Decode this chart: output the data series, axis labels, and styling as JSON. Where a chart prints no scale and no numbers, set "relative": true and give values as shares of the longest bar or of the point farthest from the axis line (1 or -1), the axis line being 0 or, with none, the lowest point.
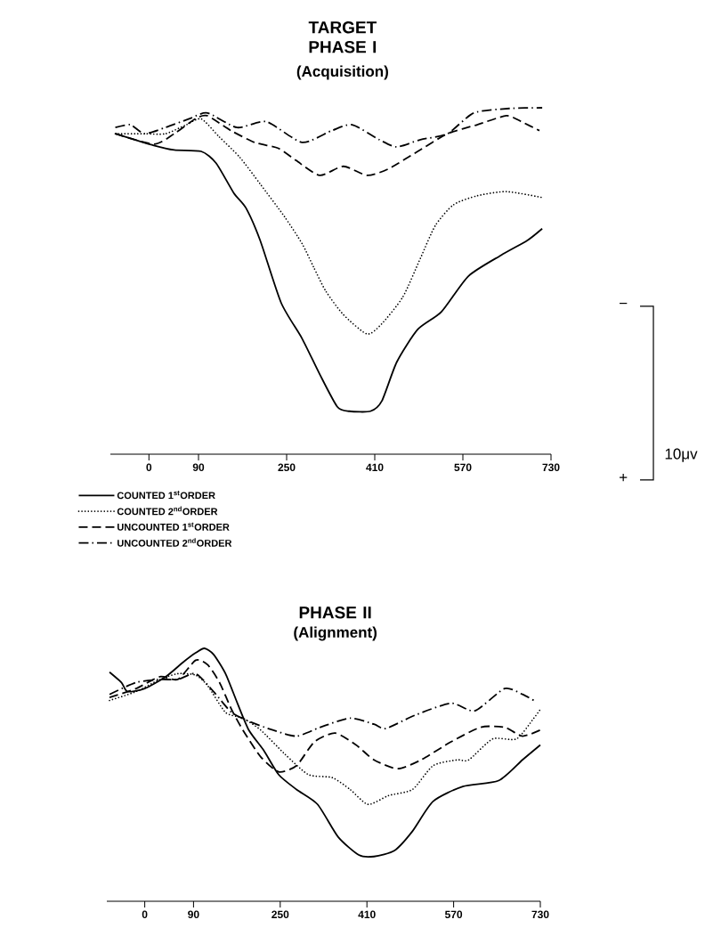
{
  "chart_data": [
    {
      "type": "line",
      "title": "TARGET PHASE I",
      "subtitle": "(Acquisition)",
      "relative": true,
      "xlim": [
        -70,
        730
      ],
      "xticks": [
        0,
        90,
        250,
        410,
        570,
        730
      ],
      "legend": "bottom left",
      "annotations": [
        "−",
        "+",
        "10μv"
      ],
      "series": [
        {
          "name": "COUNTED 1$^{st}$ORDER",
          "color": "#000000",
          "line_style": "solid",
          "x": [
            -61,
            9,
            46,
            95,
            122,
            154,
            176,
            202,
            240,
            278,
            310,
            342,
            364,
            402,
            423,
            450,
            488,
            531,
            580,
            639,
            687,
            714
          ],
          "values": [
            0.925,
            0.891,
            0.878,
            0.874,
            0.84,
            0.754,
            0.711,
            0.617,
            0.437,
            0.334,
            0.231,
            0.137,
            0.124,
            0.124,
            0.154,
            0.266,
            0.36,
            0.411,
            0.514,
            0.574,
            0.617,
            0.651
          ]
        },
        {
          "name": "COUNTED 2$^{nd}$ORDER",
          "color": "#000000",
          "line_style": "dotted",
          "x": [
            -61,
            -8,
            30,
            68,
            95,
            127,
            165,
            202,
            246,
            278,
            299,
            321,
            353,
            396,
            423,
            461,
            493,
            520,
            553,
            596,
            649,
            714
          ],
          "values": [
            0.925,
            0.925,
            0.925,
            0.951,
            0.968,
            0.917,
            0.857,
            0.78,
            0.686,
            0.608,
            0.54,
            0.471,
            0.403,
            0.347,
            0.377,
            0.454,
            0.566,
            0.66,
            0.72,
            0.746,
            0.758,
            0.741
          ]
        },
        {
          "name": "UNCOUNTED  1$^{st}$ORDER",
          "color": "#000000",
          "line_style": "dashed",
          "x": [
            -61,
            9,
            46,
            84,
            106,
            149,
            192,
            235,
            267,
            310,
            353,
            396,
            434,
            488,
            542,
            596,
            649,
            676,
            709
          ],
          "values": [
            0.925,
            0.895,
            0.925,
            0.968,
            0.977,
            0.934,
            0.9,
            0.883,
            0.848,
            0.805,
            0.831,
            0.805,
            0.823,
            0.874,
            0.925,
            0.951,
            0.977,
            0.96,
            0.934
          ]
        },
        {
          "name": "UNCOUNTED  2$^{nd}$ORDER",
          "color": "#000000",
          "line_style": "dashdot",
          "x": [
            -61,
            -34,
            -8,
            30,
            73,
            106,
            160,
            213,
            278,
            332,
            369,
            418,
            450,
            493,
            542,
            590,
            655,
            714
          ],
          "values": [
            0.943,
            0.951,
            0.925,
            0.943,
            0.968,
            0.985,
            0.943,
            0.96,
            0.9,
            0.934,
            0.951,
            0.908,
            0.887,
            0.908,
            0.925,
            0.985,
            0.998,
            1.0
          ]
        }
      ]
    },
    {
      "type": "line",
      "title": "PHASE II",
      "subtitle": "(Alignment)",
      "relative": true,
      "xlim": [
        -70,
        730
      ],
      "xticks": [
        0,
        90,
        250,
        410,
        570,
        730
      ],
      "series": [
        {
          "color": "#000000",
          "line_style": "solid",
          "x": [
            -65,
            -43,
            -32,
            0,
            39,
            72,
            94,
            110,
            127,
            149,
            171,
            192,
            220,
            247,
            280,
            319,
            357,
            395,
            423,
            461,
            494,
            532,
            587,
            653,
            697,
            730
          ],
          "values": [
            0.906,
            0.865,
            0.829,
            0.841,
            0.888,
            0.947,
            0.982,
            1.0,
            0.976,
            0.9,
            0.783,
            0.677,
            0.595,
            0.501,
            0.442,
            0.383,
            0.254,
            0.183,
            0.177,
            0.201,
            0.277,
            0.395,
            0.454,
            0.477,
            0.559,
            0.618
          ]
        },
        {
          "color": "#000000",
          "line_style": "dotted",
          "x": [
            -65,
            -16,
            28,
            61,
            94,
            116,
            149,
            181,
            214,
            258,
            302,
            346,
            379,
            412,
            450,
            494,
            532,
            576,
            598,
            642,
            686,
            718,
            730
          ],
          "values": [
            0.794,
            0.829,
            0.877,
            0.9,
            0.894,
            0.853,
            0.747,
            0.724,
            0.677,
            0.583,
            0.501,
            0.489,
            0.442,
            0.383,
            0.418,
            0.442,
            0.536,
            0.559,
            0.559,
            0.642,
            0.642,
            0.724,
            0.759
          ]
        },
        {
          "color": "#000000",
          "line_style": "dashed",
          "x": [
            -65,
            -16,
            28,
            61,
            94,
            116,
            138,
            160,
            181,
            214,
            247,
            280,
            313,
            351,
            390,
            423,
            467,
            510,
            565,
            620,
            664,
            697,
            730
          ],
          "values": [
            0.806,
            0.841,
            0.888,
            0.877,
            0.953,
            0.935,
            0.865,
            0.759,
            0.677,
            0.571,
            0.512,
            0.536,
            0.63,
            0.665,
            0.618,
            0.559,
            0.524,
            0.559,
            0.63,
            0.688,
            0.688,
            0.653,
            0.677
          ]
        },
        {
          "color": "#000000",
          "line_style": "dashdot",
          "x": [
            -65,
            -16,
            28,
            61,
            94,
            127,
            160,
            192,
            236,
            280,
            324,
            379,
            423,
            445,
            499,
            565,
            609,
            664,
            697,
            718
          ],
          "values": [
            0.818,
            0.865,
            0.877,
            0.877,
            0.9,
            0.829,
            0.747,
            0.712,
            0.677,
            0.653,
            0.688,
            0.724,
            0.7,
            0.683,
            0.736,
            0.783,
            0.753,
            0.841,
            0.818,
            0.794
          ]
        }
      ]
    }
  ]
}
